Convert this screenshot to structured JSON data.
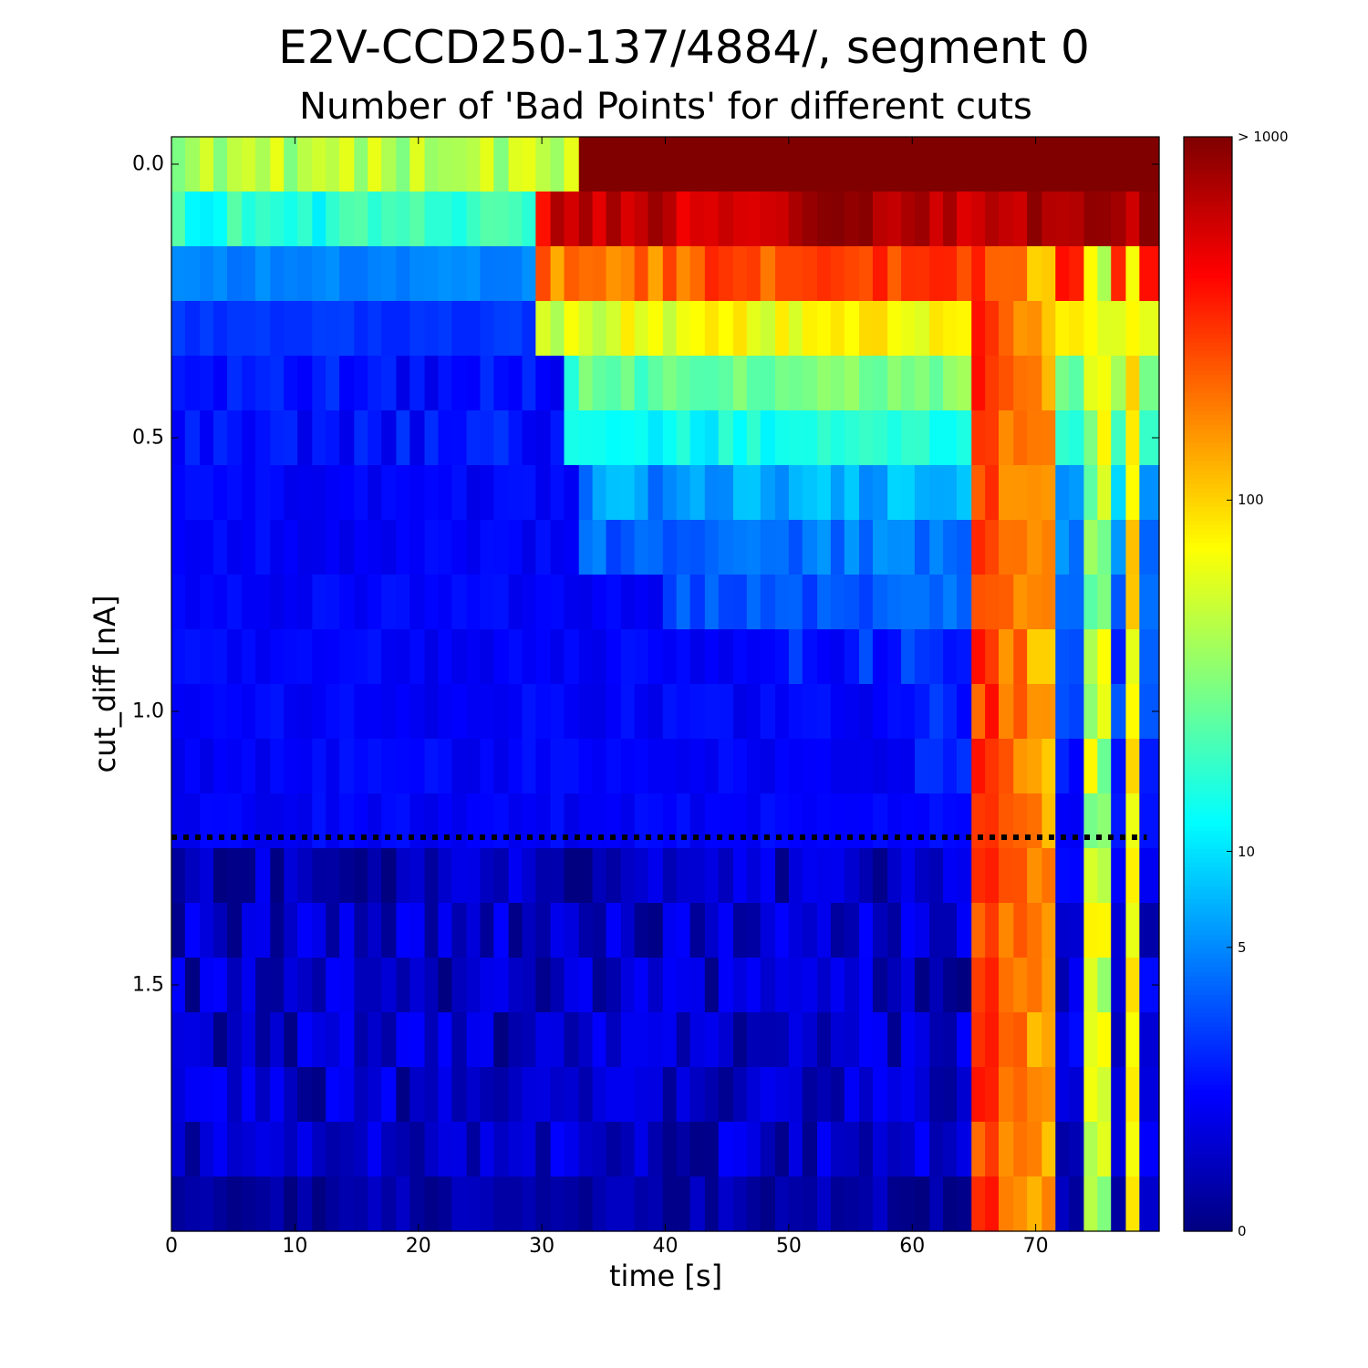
{
  "header": {
    "suptitle": "E2V-CCD250-137/4884/, segment 0",
    "title": "Number of 'Bad Points' for different cuts"
  },
  "chart_data": {
    "type": "heatmap",
    "xlabel": "time [s]",
    "ylabel": "cut_diff [nA]",
    "xlim": [
      0,
      80
    ],
    "ylim": [
      1.95,
      -0.05
    ],
    "x_ticks": [
      "0",
      "10",
      "20",
      "30",
      "40",
      "50",
      "60",
      "70"
    ],
    "y_ticks": [
      "0.0",
      "0.5",
      "1.0",
      "1.5"
    ],
    "colorbar": {
      "scale": "log",
      "tick_labels": [
        "0",
        "5",
        "10",
        "100",
        "> 1000"
      ],
      "tick_values": [
        0,
        5,
        10,
        100,
        1000
      ]
    },
    "threshold_line": {
      "y": 1.23,
      "style": "dotted",
      "color": "#000000"
    },
    "cut_values": [
      0.0,
      0.1,
      0.2,
      0.3,
      0.4,
      0.5,
      0.6,
      0.7,
      0.8,
      0.9,
      1.0,
      1.1,
      1.2,
      1.3,
      1.4,
      1.5,
      1.6,
      1.7,
      1.8,
      1.9
    ],
    "time_bin_edges": [
      0,
      1.1,
      2.3,
      3.4,
      4.5,
      5.7,
      6.8,
      8.0,
      9.1,
      10.2,
      11.4,
      12.5,
      13.6,
      14.8,
      15.9,
      17.0,
      18.2,
      19.3,
      20.5,
      21.6,
      22.7,
      23.9,
      25.0,
      26.1,
      27.3,
      28.4,
      29.5,
      30.7,
      31.8,
      33.0,
      34.1,
      35.2,
      36.4,
      37.5,
      38.6,
      39.8,
      40.9,
      42.0,
      43.2,
      44.3,
      45.5,
      46.6,
      47.7,
      48.9,
      50.0,
      51.1,
      52.3,
      53.4,
      54.5,
      55.7,
      56.8,
      58.0,
      59.1,
      60.2,
      61.4,
      62.5,
      63.6,
      64.8,
      65.9,
      67.0,
      68.2,
      69.3,
      70.5,
      71.6,
      72.7,
      73.9,
      75.0,
      76.1,
      77.3,
      78.4,
      80.0
    ],
    "row_profiles": [
      {
        "cut": 0.0,
        "edge_time_s": 33,
        "values_before": "30-80",
        "values_after": ">1000"
      },
      {
        "cut": 0.1,
        "edge_time_s": 29,
        "values_before": "10-30",
        "values_after": "300-1000"
      },
      {
        "cut": 0.2,
        "edge_time_s": 29,
        "values_before": "4-6",
        "values_after": "100-400"
      },
      {
        "cut": 0.3,
        "edge_time_s": 29,
        "values_before": "2-3",
        "values_after": "40-100"
      },
      {
        "cut": 0.4,
        "edge_time_s": 32,
        "values_before": "1-3",
        "values_after": "15-40"
      },
      {
        "cut": 0.5,
        "edge_time_s": 32,
        "values_before": "1-3",
        "values_after": "8-20"
      },
      {
        "cut": 0.6,
        "edge_time_s": 33,
        "values_before": "1-2",
        "values_after": "3-10"
      },
      {
        "cut": 0.7,
        "edge_time_s": 33,
        "values_before": "1-2",
        "values_after": "2-6"
      },
      {
        "cut": 0.8,
        "edge_time_s": 40,
        "values_before": "1-2",
        "values_after": "2-5"
      },
      {
        "cut": 0.9,
        "edge_time_s": 50,
        "values_before": "1-2",
        "values_after": "1-4"
      },
      {
        "cut": 1.0,
        "edge_time_s": 60,
        "values_before": "1-2",
        "values_after": "1-4"
      },
      {
        "cut": 1.1,
        "edge_time_s": 60,
        "values_before": "1-2",
        "values_after": "1-3"
      },
      {
        "cut": 1.2,
        "edge_time_s": 64,
        "values_before": "1-2",
        "values_after": "1-2"
      },
      {
        "cut": 1.3,
        "edge_time_s": 64,
        "values_before": "0-2",
        "values_after": "1-2"
      },
      {
        "cut": 1.4,
        "edge_time_s": 64,
        "values_before": "0-2",
        "values_after": "0-2"
      },
      {
        "cut": 1.5,
        "edge_time_s": 64,
        "values_before": "0-2",
        "values_after": "0-2"
      },
      {
        "cut": 1.6,
        "edge_time_s": 64,
        "values_before": "0-2",
        "values_after": "0-2"
      },
      {
        "cut": 1.7,
        "edge_time_s": 64,
        "values_before": "0-2",
        "values_after": "0-2"
      },
      {
        "cut": 1.8,
        "edge_time_s": 64,
        "values_before": "0-2",
        "values_after": "0-2"
      },
      {
        "cut": 1.9,
        "edge_time_s": 64,
        "values_before": "0-1",
        "values_after": "0-1"
      }
    ],
    "hot_columns": [
      {
        "time_s": 65.9,
        "value_range": "200-400"
      },
      {
        "time_s": 68.2,
        "value_range": "150-250"
      },
      {
        "time_s": 70.5,
        "value_range": "100-200"
      },
      {
        "time_s": 75.0,
        "value_range": "20-80"
      },
      {
        "time_s": 78.4,
        "value_range": "60-120"
      }
    ]
  }
}
